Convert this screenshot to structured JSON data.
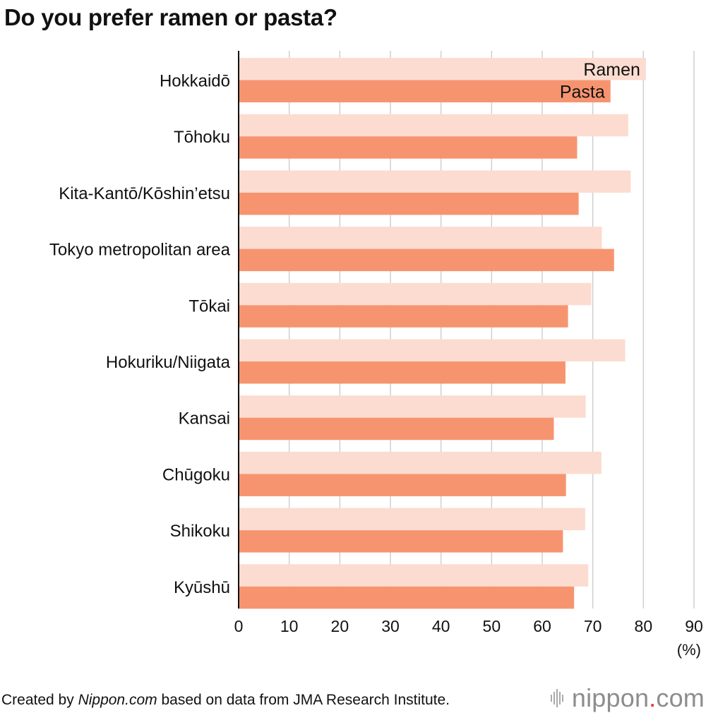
{
  "chart_data": {
    "type": "bar",
    "orientation": "horizontal",
    "title": "Do you prefer ramen or pasta?",
    "categories": [
      "Hokkaidō",
      "Tōhoku",
      "Kita-Kantō/Kōshin’etsu",
      "Tokyo metropolitan area",
      "Tōkai",
      "Hokuriku/Niigata",
      "Kansai",
      "Chūgoku",
      "Shikoku",
      "Kyūshū"
    ],
    "series": [
      {
        "name": "Ramen",
        "color": "#fcdcd0",
        "values": [
          80.5,
          77.0,
          77.5,
          71.8,
          69.7,
          76.4,
          68.6,
          71.7,
          68.5,
          69.1
        ]
      },
      {
        "name": "Pasta",
        "color": "#f79470",
        "values": [
          73.5,
          66.9,
          67.2,
          74.2,
          65.1,
          64.6,
          62.3,
          64.7,
          64.1,
          66.3
        ]
      }
    ],
    "xlim": [
      0,
      90
    ],
    "xticks": [
      "0",
      "10",
      "20",
      "30",
      "40",
      "50",
      "60",
      "70",
      "80",
      "90"
    ],
    "unit": "(%)",
    "grid": true,
    "legend_placement": "inside-first-bars"
  },
  "footer": {
    "prefix": "Created by ",
    "source_name": "Nippon.com",
    "suffix": " based on data from JMA Research Institute."
  },
  "logo": {
    "name": "nippon",
    "dot": ".",
    "tld": "com",
    "icon": "sound-bars-icon"
  }
}
